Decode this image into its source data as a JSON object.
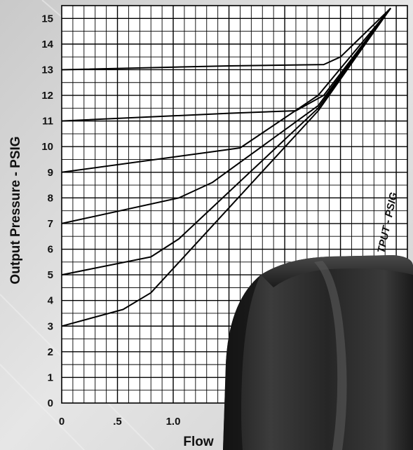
{
  "chart_data": {
    "type": "line",
    "xlabel": "Flow",
    "ylabel": "Output Pressure - PSIG",
    "xlim": [
      0,
      3.1
    ],
    "ylim": [
      0,
      15.5
    ],
    "x_tick_labels": [
      "0",
      ".5",
      "1.0"
    ],
    "y_tick_labels": [
      "0",
      "1",
      "2",
      "3",
      "4",
      "5",
      "6",
      "7",
      "8",
      "9",
      "10",
      "11",
      "12",
      "13",
      "14",
      "15"
    ],
    "grid": true,
    "series": [
      {
        "x": [
          0,
          1.5,
          2.35,
          2.5,
          2.95
        ],
        "y": [
          13,
          13.15,
          13.2,
          13.5,
          15.4
        ]
      },
      {
        "x": [
          0,
          1.5,
          2.1,
          2.35,
          2.95
        ],
        "y": [
          11,
          11.3,
          11.4,
          12.0,
          15.4
        ]
      },
      {
        "x": [
          0,
          1.35,
          1.6,
          2.3,
          2.95
        ],
        "y": [
          9,
          9.8,
          9.95,
          12.0,
          15.4
        ]
      },
      {
        "x": [
          0,
          1.05,
          1.35,
          2.3,
          2.95
        ],
        "y": [
          7,
          8.0,
          8.6,
          11.6,
          15.4
        ]
      },
      {
        "x": [
          0,
          0.8,
          1.05,
          2.3,
          2.95
        ],
        "y": [
          5,
          5.7,
          6.4,
          11.5,
          15.4
        ]
      },
      {
        "x": [
          0,
          0.55,
          0.8,
          2.3,
          2.95
        ],
        "y": [
          3,
          3.65,
          4.3,
          11.4,
          15.4
        ]
      }
    ],
    "overlay_label": "TPUT - PSIG"
  }
}
